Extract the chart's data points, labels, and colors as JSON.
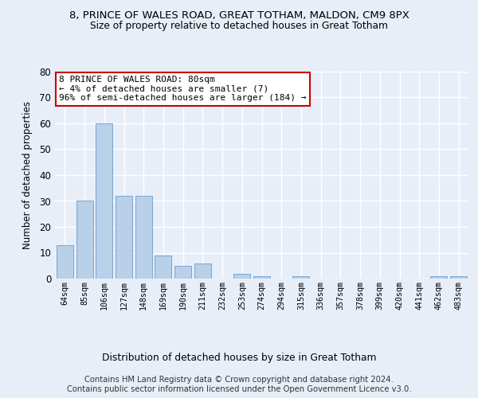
{
  "title1": "8, PRINCE OF WALES ROAD, GREAT TOTHAM, MALDON, CM9 8PX",
  "title2": "Size of property relative to detached houses in Great Totham",
  "xlabel": "Distribution of detached houses by size in Great Totham",
  "ylabel": "Number of detached properties",
  "categories": [
    "64sqm",
    "85sqm",
    "106sqm",
    "127sqm",
    "148sqm",
    "169sqm",
    "190sqm",
    "211sqm",
    "232sqm",
    "253sqm",
    "274sqm",
    "294sqm",
    "315sqm",
    "336sqm",
    "357sqm",
    "378sqm",
    "399sqm",
    "420sqm",
    "441sqm",
    "462sqm",
    "483sqm"
  ],
  "values": [
    13,
    30,
    60,
    32,
    32,
    9,
    5,
    6,
    0,
    2,
    1,
    0,
    1,
    0,
    0,
    0,
    0,
    0,
    0,
    1,
    1
  ],
  "bar_color": "#b8d0e8",
  "bar_edge_color": "#5a8fc0",
  "ylim": [
    0,
    80
  ],
  "yticks": [
    0,
    10,
    20,
    30,
    40,
    50,
    60,
    70,
    80
  ],
  "annotation_text": "8 PRINCE OF WALES ROAD: 80sqm\n← 4% of detached houses are smaller (7)\n96% of semi-detached houses are larger (184) →",
  "annotation_box_color": "#ffffff",
  "annotation_box_edge": "#cc0000",
  "footer": "Contains HM Land Registry data © Crown copyright and database right 2024.\nContains public sector information licensed under the Open Government Licence v3.0.",
  "background_color": "#e8eef8",
  "plot_background": "#e8eef8",
  "grid_color": "#ffffff"
}
